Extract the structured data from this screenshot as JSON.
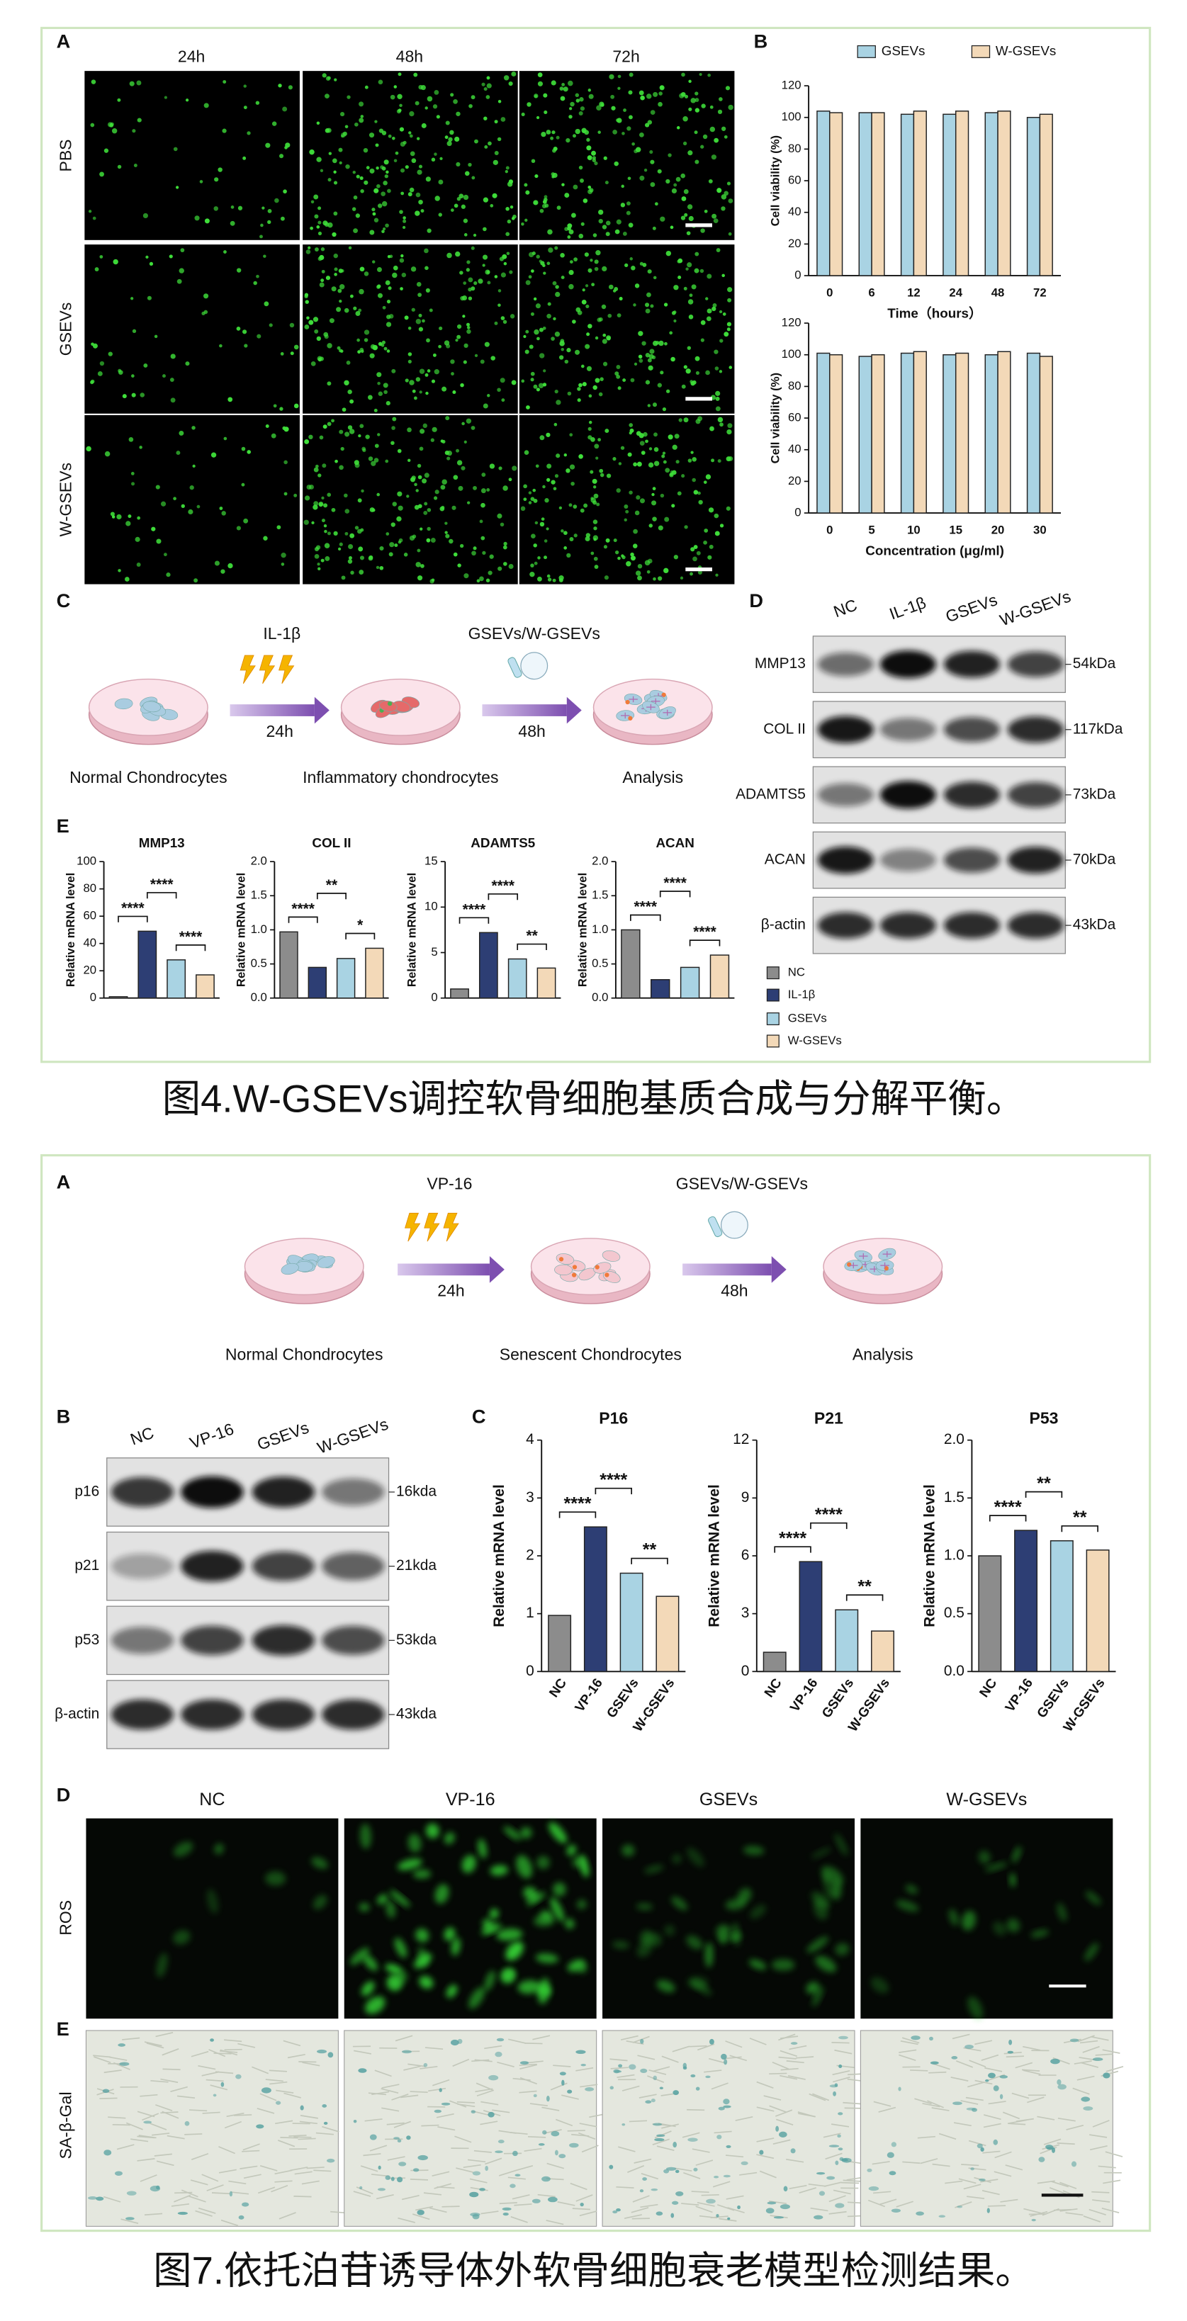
{
  "figure4": {
    "caption": "图4.W-GSEVs调控软骨细胞基质合成与分解平衡。",
    "panel_labels": [
      "A",
      "B",
      "C",
      "D",
      "E"
    ],
    "imaging": {
      "columns": [
        "24h",
        "48h",
        "72h"
      ],
      "rows": [
        "PBS",
        "GSEVs",
        "W-GSEVs"
      ]
    },
    "scheme": {
      "steps": [
        "Normal  Chondrocytes",
        "Inflammatory chondrocytes",
        "Analysis"
      ],
      "treatments": [
        "IL-1β",
        "GSEVs/W-GSEVs"
      ],
      "durations": [
        "24h",
        "48h"
      ]
    },
    "blot": {
      "lanes": [
        "NC",
        "IL-1β",
        "GSEVs",
        "W-GSEVs"
      ],
      "proteins": [
        "MMP13",
        "COL II",
        "ADAMTS5",
        "ACAN",
        "β-actin"
      ],
      "sizes": [
        "54kDa",
        "117kDa",
        "73kDa",
        "70kDa",
        "43kDa"
      ]
    }
  },
  "figure7": {
    "caption": "图7.依托泊苷诱导体外软骨细胞衰老模型检测结果。",
    "panel_labels": [
      "A",
      "B",
      "C",
      "D",
      "E"
    ],
    "scheme": {
      "steps": [
        "Normal  Chondrocytes",
        "Senescent Chondrocytes",
        "Analysis"
      ],
      "treatments": [
        "VP-16",
        "GSEVs/W-GSEVs"
      ],
      "durations": [
        "24h",
        "48h"
      ]
    },
    "blot": {
      "lanes": [
        "NC",
        "VP-16",
        "GSEVs",
        "W-GSEVs"
      ],
      "proteins": [
        "p16",
        "p21",
        "p53",
        "β-actin"
      ],
      "sizes": [
        "16kda",
        "21kda",
        "53kda",
        "43kda"
      ]
    },
    "staining": {
      "columns": [
        "NC",
        "VP-16",
        "GSEVs",
        "W-GSEVs"
      ],
      "rows": [
        "ROS",
        "SA-β-Gal"
      ]
    }
  },
  "chart_data": [
    {
      "type": "bar",
      "ylabel": "Cell viability (%)",
      "xlabel": "Time（hours）",
      "categories": [
        "0",
        "6",
        "12",
        "24",
        "48",
        "72"
      ],
      "series": [
        {
          "name": "GSEVs",
          "color": "#a9d3e3",
          "values": [
            104,
            103,
            102,
            102,
            103,
            100
          ]
        },
        {
          "name": "W-GSEVs",
          "color": "#f3d9b8",
          "values": [
            103,
            103,
            104,
            104,
            104,
            102
          ]
        }
      ],
      "ylim": [
        0,
        120
      ],
      "yticks": [
        0,
        20,
        40,
        60,
        80,
        100,
        120
      ]
    },
    {
      "type": "bar",
      "ylabel": "Cell viability (%)",
      "xlabel": "Concentration (μg/ml)",
      "categories": [
        "0",
        "5",
        "10",
        "15",
        "20",
        "30"
      ],
      "series": [
        {
          "color": "#a9d3e3",
          "values": [
            101,
            99,
            101,
            100,
            100,
            101
          ]
        },
        {
          "color": "#f3d9b8",
          "values": [
            100,
            100,
            102,
            101,
            102,
            99
          ]
        }
      ],
      "ylim": [
        0,
        120
      ],
      "yticks": [
        0,
        20,
        40,
        60,
        80,
        100,
        120
      ]
    },
    {
      "type": "bar",
      "title": "MMP13",
      "ylabel": "Relative mRNA level",
      "categories": [
        "NC",
        "IL-1β",
        "GSEVs",
        "W-GSEVs"
      ],
      "colors": [
        "#8c8c8c",
        "#2d3e74",
        "#a9d3e3",
        "#f3d9b8"
      ],
      "values": [
        1,
        49,
        28,
        17
      ],
      "ylim": [
        0,
        100
      ],
      "yticks": [
        0,
        20,
        40,
        60,
        80,
        100
      ],
      "annotations": [
        "****",
        "****",
        "****"
      ]
    },
    {
      "type": "bar",
      "title": "COL II",
      "ylabel": "Relative mRNA level",
      "colors": [
        "#8c8c8c",
        "#2d3e74",
        "#a9d3e3",
        "#f3d9b8"
      ],
      "values": [
        0.97,
        0.45,
        0.58,
        0.73
      ],
      "ylim": [
        0,
        2
      ],
      "yticks": [
        {
          "value": 0,
          "label": "0.0"
        },
        0.5,
        {
          "value": 1,
          "label": "1.0"
        },
        1.5,
        {
          "value": 2,
          "label": "2.0"
        }
      ],
      "annotations": [
        "****",
        "**",
        "*"
      ]
    },
    {
      "type": "bar",
      "title": "ADAMTS5",
      "ylabel": "Relative mRNA level",
      "colors": [
        "#8c8c8c",
        "#2d3e74",
        "#a9d3e3",
        "#f3d9b8"
      ],
      "values": [
        1,
        7.2,
        4.3,
        3.3
      ],
      "ylim": [
        0,
        15
      ],
      "yticks": [
        0,
        5,
        10,
        15
      ],
      "annotations": [
        "****",
        "****",
        "**"
      ]
    },
    {
      "type": "bar",
      "title": "ACAN",
      "ylabel": "Relative mRNA level",
      "colors": [
        "#8c8c8c",
        "#2d3e74",
        "#a9d3e3",
        "#f3d9b8"
      ],
      "values": [
        1.0,
        0.27,
        0.45,
        0.63
      ],
      "ylim": [
        0,
        2
      ],
      "yticks": [
        {
          "value": 0,
          "label": "0.0"
        },
        0.5,
        {
          "value": 1,
          "label": "1.0"
        },
        1.5,
        {
          "value": 2,
          "label": "2.0"
        }
      ],
      "annotations": [
        "****",
        "****",
        "****"
      ]
    },
    {
      "type": "bar",
      "title": "P16",
      "ylabel": "Relative mRNA level",
      "categories": [
        "NC",
        "VP-16",
        "GSEVs",
        "W-GSEVs"
      ],
      "colors": [
        "#8c8c8c",
        "#2d3e74",
        "#a9d3e3",
        "#f3d9b8"
      ],
      "values": [
        0.97,
        2.5,
        1.7,
        1.3
      ],
      "ylim": [
        0,
        4
      ],
      "yticks": [
        0,
        1,
        2,
        3,
        4
      ],
      "annotations": [
        "****",
        "****",
        "**"
      ]
    },
    {
      "type": "bar",
      "title": "P21",
      "ylabel": "Relative mRNA level",
      "categories": [
        "NC",
        "VP-16",
        "GSEVs",
        "W-GSEVs"
      ],
      "colors": [
        "#8c8c8c",
        "#2d3e74",
        "#a9d3e3",
        "#f3d9b8"
      ],
      "values": [
        1.0,
        5.7,
        3.2,
        2.1
      ],
      "ylim": [
        0,
        12
      ],
      "yticks": [
        0,
        3,
        6,
        9,
        12
      ],
      "annotations": [
        "****",
        "****",
        "**"
      ]
    },
    {
      "type": "bar",
      "title": "P53",
      "ylabel": "Relative mRNA level",
      "categories": [
        "NC",
        "VP-16",
        "GSEVs",
        "W-GSEVs"
      ],
      "colors": [
        "#8c8c8c",
        "#2d3e74",
        "#a9d3e3",
        "#f3d9b8"
      ],
      "values": [
        1.0,
        1.22,
        1.13,
        1.05
      ],
      "ylim": [
        0,
        2
      ],
      "yticks": [
        {
          "value": 0,
          "label": "0.0"
        },
        0.5,
        {
          "value": 1,
          "label": "1.0"
        },
        1.5,
        {
          "value": 2,
          "label": "2.0"
        }
      ],
      "annotations": [
        "****",
        "**",
        "**"
      ]
    }
  ]
}
